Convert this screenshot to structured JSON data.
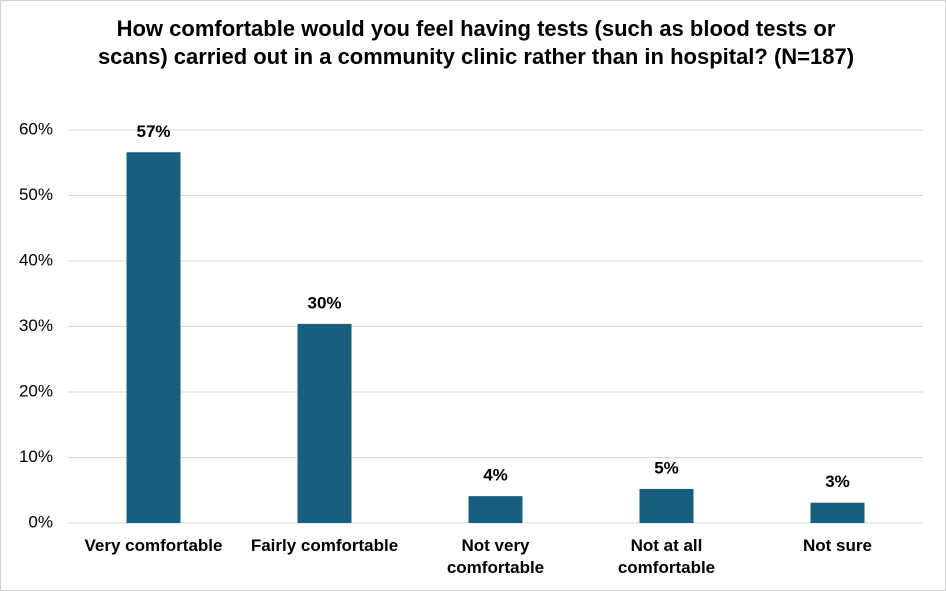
{
  "chart_data": {
    "type": "bar",
    "title": "How comfortable would you feel having tests (such as blood tests or scans) carried out in a community clinic rather than in hospital? (N=187)",
    "categories": [
      "Very comfortable",
      "Fairly comfortable",
      "Not very comfortable",
      "Not at all comfortable",
      "Not sure"
    ],
    "values": [
      56.6,
      30.4,
      4.1,
      5.2,
      3.1
    ],
    "value_labels": [
      "57%",
      "30%",
      "4%",
      "5%",
      "3%"
    ],
    "color": "#175e7f",
    "ylim": [
      0,
      60
    ],
    "yticks": [
      {
        "value": 0,
        "label": "0%"
      },
      {
        "value": 10,
        "label": "10%"
      },
      {
        "value": 20,
        "label": "20%"
      },
      {
        "value": 30,
        "label": "30%"
      },
      {
        "value": 40,
        "label": "40%"
      },
      {
        "value": 50,
        "label": "50%"
      },
      {
        "value": 60,
        "label": "60%"
      }
    ],
    "grid": true
  }
}
